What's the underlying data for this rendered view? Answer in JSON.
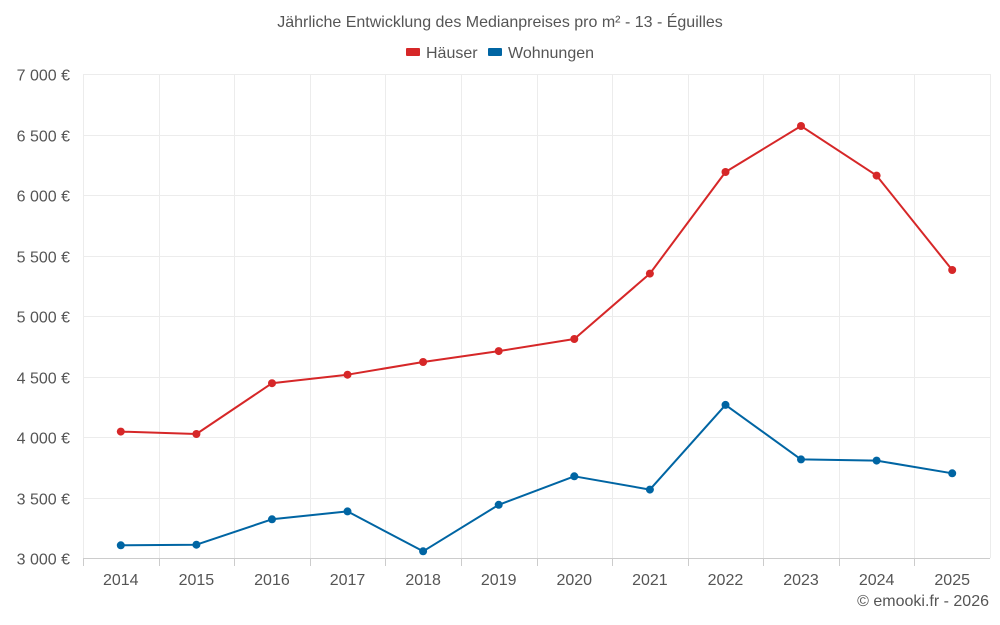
{
  "chart_data": {
    "type": "line",
    "title": "Jährliche Entwicklung des Medianpreises pro m² - 13 - Éguilles",
    "categories": [
      "2014",
      "2015",
      "2016",
      "2017",
      "2018",
      "2019",
      "2020",
      "2021",
      "2022",
      "2023",
      "2024",
      "2025"
    ],
    "series": [
      {
        "name": "Häuser",
        "color": "#d62728",
        "values": [
          4045,
          4025,
          4445,
          4515,
          4620,
          4710,
          4810,
          5350,
          6190,
          6570,
          6160,
          5380
        ]
      },
      {
        "name": "Wohnungen",
        "color": "#0065a3",
        "values": [
          3105,
          3110,
          3320,
          3385,
          3055,
          3440,
          3675,
          3565,
          4265,
          3815,
          3805,
          3700
        ]
      }
    ],
    "ylim": [
      3000,
      7000
    ],
    "y_ticks": [
      {
        "value": 3000,
        "label": "3 000 €"
      },
      {
        "value": 3500,
        "label": "3 500 €"
      },
      {
        "value": 4000,
        "label": "4 000 €"
      },
      {
        "value": 4500,
        "label": "4 500 €"
      },
      {
        "value": 5000,
        "label": "5 000 €"
      },
      {
        "value": 5500,
        "label": "5 500 €"
      },
      {
        "value": 6000,
        "label": "6 000 €"
      },
      {
        "value": 6500,
        "label": "6 500 €"
      },
      {
        "value": 7000,
        "label": "7 000 €"
      }
    ],
    "xlabel": "",
    "ylabel": "",
    "grid": true,
    "legend": "top-center",
    "credit": "© emooki.fr - 2026"
  }
}
